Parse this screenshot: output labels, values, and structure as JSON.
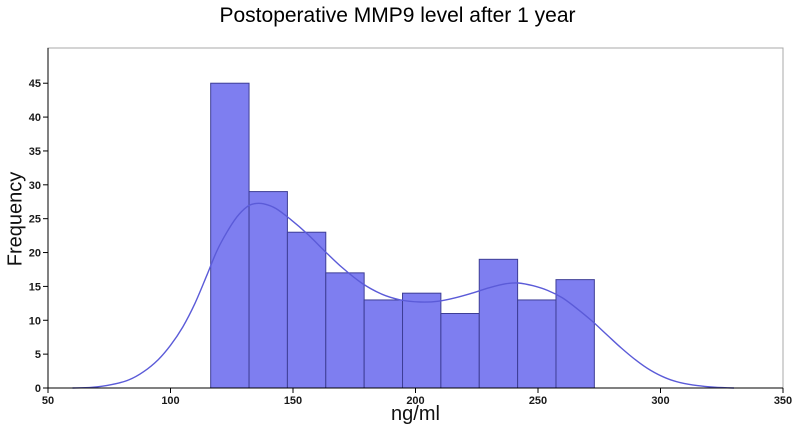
{
  "chart_data": {
    "type": "histogram",
    "title": "Postoperative MMP9 level after 1 year",
    "xlabel": "ng/ml",
    "ylabel": "Frequency",
    "grid": false,
    "legend": null,
    "xlim": [
      50,
      350
    ],
    "ylim": [
      0,
      50.2
    ],
    "x_ticks": [
      50,
      100,
      150,
      200,
      250,
      300,
      350
    ],
    "y_ticks": [
      0,
      5,
      10,
      15,
      20,
      25,
      30,
      35,
      40,
      45
    ],
    "bin_start": 116.4,
    "bin_width": 15.66,
    "frequencies": [
      45,
      29,
      23,
      17,
      13,
      14,
      11,
      19,
      13,
      16
    ],
    "total_count": 200,
    "density_curve": [
      [
        60,
        0
      ],
      [
        68,
        0.1
      ],
      [
        76,
        0.5
      ],
      [
        83,
        1.2
      ],
      [
        89,
        2.4
      ],
      [
        95,
        4.2
      ],
      [
        100,
        6.3
      ],
      [
        105,
        9.0
      ],
      [
        110,
        12.5
      ],
      [
        115,
        16.8
      ],
      [
        119,
        20.3
      ],
      [
        123,
        23.0
      ],
      [
        127,
        25.2
      ],
      [
        131,
        26.7
      ],
      [
        134,
        27.2
      ],
      [
        138,
        27.2
      ],
      [
        143,
        26.5
      ],
      [
        149,
        24.9
      ],
      [
        156,
        22.7
      ],
      [
        163,
        20.2
      ],
      [
        170,
        17.8
      ],
      [
        178,
        15.5
      ],
      [
        186,
        13.9
      ],
      [
        194,
        13.0
      ],
      [
        202,
        12.7
      ],
      [
        209,
        12.8
      ],
      [
        216,
        13.3
      ],
      [
        223,
        14.0
      ],
      [
        230,
        14.8
      ],
      [
        237,
        15.4
      ],
      [
        242,
        15.5
      ],
      [
        248,
        15.1
      ],
      [
        254,
        14.4
      ],
      [
        260,
        13.3
      ],
      [
        266,
        11.7
      ],
      [
        272,
        9.9
      ],
      [
        278,
        7.9
      ],
      [
        284,
        5.9
      ],
      [
        290,
        4.1
      ],
      [
        296,
        2.6
      ],
      [
        302,
        1.5
      ],
      [
        308,
        0.8
      ],
      [
        315,
        0.35
      ],
      [
        322,
        0.12
      ],
      [
        330,
        0
      ]
    ],
    "colors": {
      "bar_fill": "#7e7ef0",
      "bar_edge": "#3e3e96",
      "curve": "#5b5bd8",
      "frame": "#a8a8a8",
      "axis": "#000000",
      "tick_label": "#1a1a1a",
      "background": "#ffffff"
    }
  }
}
